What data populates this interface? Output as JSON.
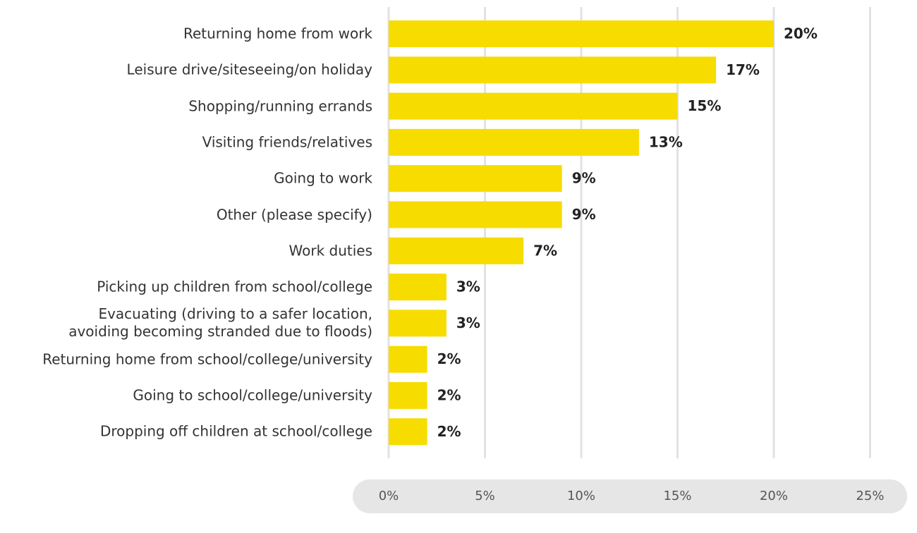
{
  "chart_data": {
    "type": "hbar",
    "categories": [
      "Returning home from work",
      "Leisure drive/siteseeing/on holiday",
      "Shopping/running errands",
      "Visiting friends/relatives",
      "Going to work",
      "Other (please specify)",
      "Work duties",
      "Picking up  children from school/college",
      "Evacuating (driving to a safer location,\navoiding becoming stranded due to floods)",
      "Returning home from school/college/university",
      "Going to school/college/university",
      "Dropping off children at school/college"
    ],
    "values": [
      20,
      17,
      15,
      13,
      9,
      9,
      7,
      3,
      3,
      2,
      2,
      2
    ],
    "value_labels": [
      "20%",
      "17%",
      "15%",
      "13%",
      "9%",
      "9%",
      "7%",
      "3%",
      "3%",
      "2%",
      "2%",
      "2%"
    ],
    "color": "#f7dc00",
    "xlim": [
      0,
      25
    ],
    "xticks": [
      {
        "value": 0,
        "label": "0%"
      },
      {
        "value": 5,
        "label": "5%"
      },
      {
        "value": 10,
        "label": "10%"
      },
      {
        "value": 15,
        "label": "15%"
      },
      {
        "value": 20,
        "label": "20%"
      },
      {
        "value": 25,
        "label": "25%"
      }
    ],
    "grid": true
  }
}
